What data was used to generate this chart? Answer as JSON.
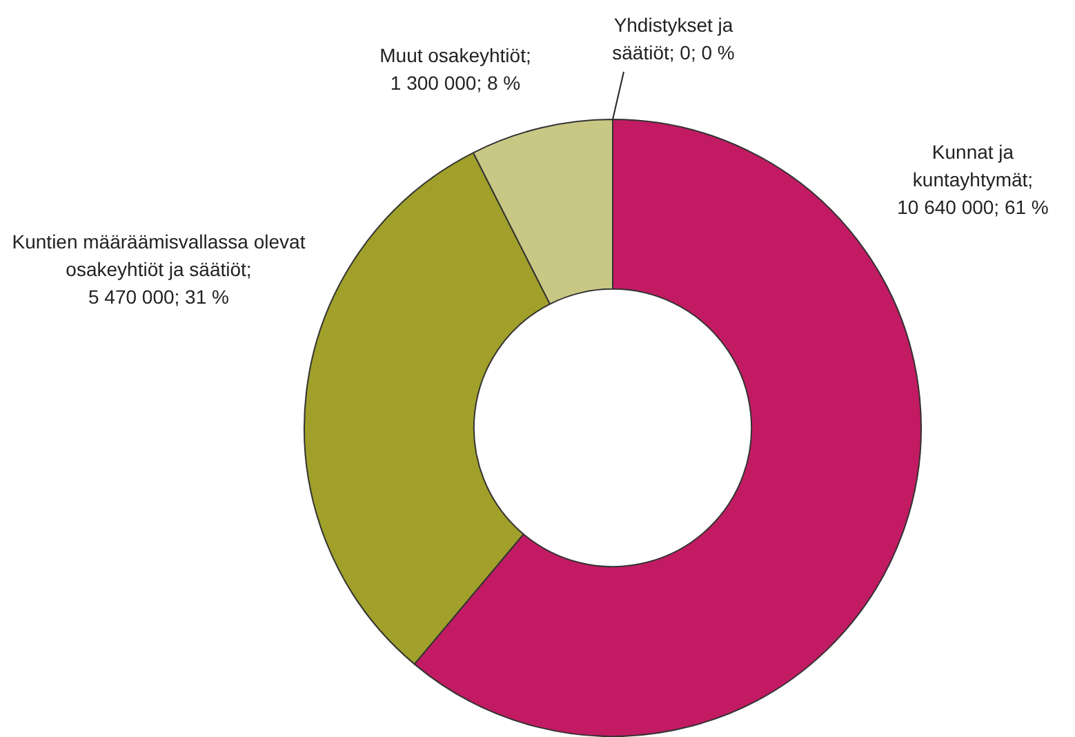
{
  "chart_data": {
    "type": "donut",
    "categories": [
      "Kunnat ja kuntayhtymät",
      "Kuntien määräämisvallassa olevat osakeyhtiöt ja säätiöt",
      "Muut osakeyhtiöt",
      "Yhdistykset ja säätiöt"
    ],
    "values": [
      10640000,
      5470000,
      1300000,
      0
    ],
    "colors": [
      "#c21b63",
      "#a0a02a",
      "#c9c784",
      "#8a8a8a"
    ],
    "value_labels": [
      "; 10 640 000; 61 %",
      "; 5 470 000; 31 %",
      "; 1 300 000; 8 %",
      "; 0; 0 %"
    ],
    "legend": false
  }
}
